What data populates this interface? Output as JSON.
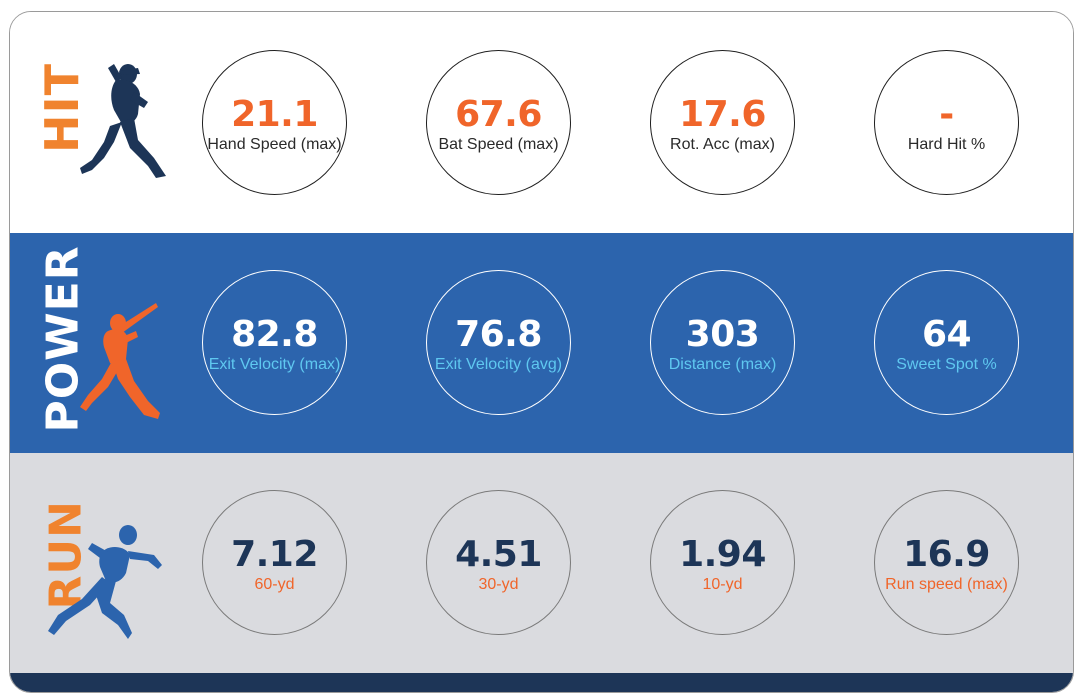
{
  "sections": {
    "hit": {
      "title": "HIT",
      "icon": "batter-stance-icon",
      "stats": [
        {
          "value": "21.1",
          "label": "Hand Speed (max)"
        },
        {
          "value": "67.6",
          "label": "Bat Speed (max)"
        },
        {
          "value": "17.6",
          "label": "Rot. Acc (max)"
        },
        {
          "value": "-",
          "label": "Hard Hit %"
        }
      ]
    },
    "power": {
      "title": "POWER",
      "icon": "batter-swing-icon",
      "stats": [
        {
          "value": "82.8",
          "label": "Exit Velocity (max)"
        },
        {
          "value": "76.8",
          "label": "Exit Velocity (avg)"
        },
        {
          "value": "303",
          "label": "Distance (max)"
        },
        {
          "value": "64",
          "label": "Sweet Spot %"
        }
      ]
    },
    "run": {
      "title": "RUN",
      "icon": "sprinter-icon",
      "stats": [
        {
          "value": "7.12",
          "label": "60-yd"
        },
        {
          "value": "4.51",
          "label": "30-yd"
        },
        {
          "value": "1.94",
          "label": "10-yd"
        },
        {
          "value": "16.9",
          "label": "Run speed (max)"
        }
      ]
    }
  },
  "colors": {
    "orange": "#f0652a",
    "navy": "#1d3557",
    "power_blue": "#2c64ad",
    "light_blue_text": "#5fc8f0",
    "run_gray": "#dadbdf"
  }
}
